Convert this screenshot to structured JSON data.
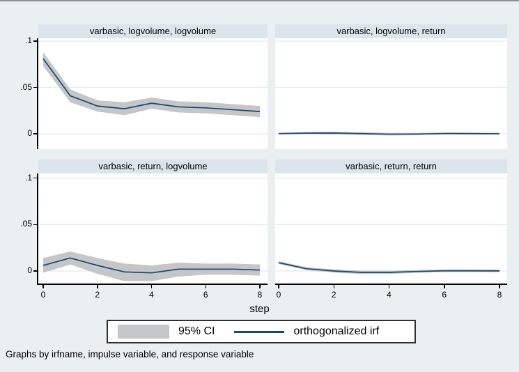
{
  "colors": {
    "background": "#eaeff1",
    "plot_background": "#ffffff",
    "strip_background": "#dce4ec",
    "grid": "#e3eaf1",
    "irf_line": "#1a476f",
    "ci_band": "#c4c6c8",
    "axis": "#000000"
  },
  "xlabel": "step",
  "legend": {
    "ci_label": "95% CI",
    "irf_label": "orthogonalized irf"
  },
  "caption": "Graphs by irfname, impulse variable, and response variable",
  "chart_data": [
    {
      "type": "area",
      "title": "varbasic, logvolume, logvolume",
      "x": [
        0,
        1,
        2,
        3,
        4,
        5,
        6,
        7,
        8
      ],
      "series": [
        {
          "name": "95% CI lower",
          "values": [
            0.073,
            0.034,
            0.024,
            0.02,
            0.027,
            0.023,
            0.022,
            0.02,
            0.018
          ]
        },
        {
          "name": "95% CI upper",
          "values": [
            0.088,
            0.048,
            0.036,
            0.034,
            0.039,
            0.035,
            0.034,
            0.032,
            0.03
          ]
        },
        {
          "name": "orthogonalized irf",
          "values": [
            0.081,
            0.041,
            0.03,
            0.027,
            0.033,
            0.029,
            0.028,
            0.026,
            0.024
          ]
        }
      ],
      "ylim": [
        -0.0165,
        0.103
      ],
      "yticks": [
        0,
        0.05,
        0.1
      ],
      "ytick_labels": [
        "0",
        ".05",
        ".1"
      ],
      "xticks": [
        0,
        2,
        4,
        6,
        8
      ],
      "xtick_labels": [
        "0",
        "2",
        "4",
        "6",
        "8"
      ],
      "grid": true,
      "legend_position": "bottom"
    },
    {
      "type": "area",
      "title": "varbasic, logvolume, return",
      "x": [
        0,
        1,
        2,
        3,
        4,
        5,
        6,
        7,
        8
      ],
      "series": [
        {
          "name": "95% CI lower",
          "values": [
            -0.0006,
            -0.0004,
            -0.0006,
            -0.0012,
            -0.0018,
            -0.0016,
            -0.0008,
            -0.0009,
            -0.001
          ]
        },
        {
          "name": "95% CI upper",
          "values": [
            0.001,
            0.0018,
            0.0022,
            0.0016,
            0.001,
            0.001,
            0.0014,
            0.0013,
            0.0012
          ]
        },
        {
          "name": "orthogonalized irf",
          "values": [
            0.0002,
            0.0007,
            0.0008,
            0.0002,
            -0.0004,
            -0.0003,
            0.0003,
            0.0002,
            0.0001
          ]
        }
      ],
      "ylim": [
        -0.0165,
        0.103
      ],
      "yticks": [
        0,
        0.05,
        0.1
      ],
      "ytick_labels": [
        "0",
        ".05",
        ".1"
      ],
      "xticks": [
        0,
        2,
        4,
        6,
        8
      ],
      "xtick_labels": [
        "0",
        "2",
        "4",
        "6",
        "8"
      ],
      "grid": true,
      "legend_position": "bottom"
    },
    {
      "type": "area",
      "title": "varbasic, return, logvolume",
      "x": [
        0,
        1,
        2,
        3,
        4,
        5,
        6,
        7,
        8
      ],
      "series": [
        {
          "name": "95% CI lower",
          "values": [
            -0.002,
            0.007,
            -0.003,
            -0.011,
            -0.011,
            -0.006,
            -0.004,
            -0.004,
            -0.005
          ]
        },
        {
          "name": "95% CI upper",
          "values": [
            0.014,
            0.021,
            0.014,
            0.008,
            0.006,
            0.009,
            0.008,
            0.008,
            0.007
          ]
        },
        {
          "name": "orthogonalized irf",
          "values": [
            0.006,
            0.014,
            0.006,
            -0.001,
            -0.002,
            0.002,
            0.002,
            0.002,
            0.001
          ]
        }
      ],
      "ylim": [
        -0.0135,
        0.105
      ],
      "yticks": [
        0,
        0.05,
        0.1
      ],
      "ytick_labels": [
        "0",
        ".05",
        ".1"
      ],
      "xticks": [
        0,
        2,
        4,
        6,
        8
      ],
      "xtick_labels": [
        "0",
        "2",
        "4",
        "6",
        "8"
      ],
      "grid": true,
      "legend_position": "bottom"
    },
    {
      "type": "area",
      "title": "varbasic, return, return",
      "x": [
        0,
        1,
        2,
        3,
        4,
        5,
        6,
        7,
        8
      ],
      "series": [
        {
          "name": "95% CI lower",
          "values": [
            0.0075,
            0.001,
            -0.0018,
            -0.0033,
            -0.0033,
            -0.002,
            -0.0012,
            -0.0012,
            -0.0013
          ]
        },
        {
          "name": "95% CI upper",
          "values": [
            0.0105,
            0.004,
            0.0018,
            0.0003,
            0.0003,
            0.001,
            0.0016,
            0.0016,
            0.0015
          ]
        },
        {
          "name": "orthogonalized irf",
          "values": [
            0.009,
            0.0025,
            0.0,
            -0.0015,
            -0.0015,
            -0.0005,
            0.0002,
            0.0002,
            0.0001
          ]
        }
      ],
      "ylim": [
        -0.0135,
        0.105
      ],
      "yticks": [
        0,
        0.05,
        0.1
      ],
      "ytick_labels": [
        "0",
        ".05",
        ".1"
      ],
      "xticks": [
        0,
        2,
        4,
        6,
        8
      ],
      "xtick_labels": [
        "0",
        "2",
        "4",
        "6",
        "8"
      ],
      "grid": true,
      "legend_position": "bottom"
    }
  ]
}
